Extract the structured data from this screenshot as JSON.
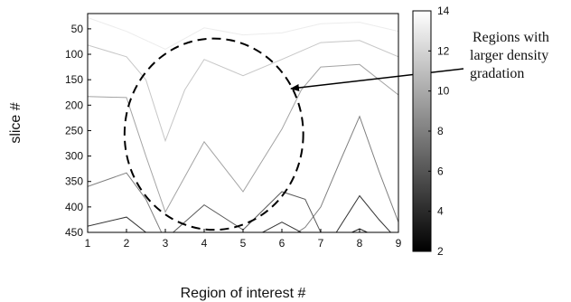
{
  "chart_data": {
    "type": "line",
    "title": "",
    "xlabel": "Region of interest #",
    "ylabel": "slice #",
    "xlim": [
      1,
      9
    ],
    "ylim": [
      450,
      20
    ],
    "y_inverted": true,
    "x_ticks": [
      1,
      2,
      3,
      4,
      5,
      6,
      7,
      8,
      9
    ],
    "y_ticks": [
      50,
      100,
      150,
      200,
      250,
      300,
      350,
      400,
      450
    ],
    "grid": false,
    "colorbar": {
      "ticks": [
        2,
        4,
        6,
        8,
        10,
        12,
        14
      ],
      "range": [
        2,
        14
      ],
      "colormap": "gray",
      "placement": "right"
    },
    "series": [
      {
        "level": 14,
        "color": "#ececec",
        "points": [
          [
            1,
            28
          ],
          [
            2,
            55
          ],
          [
            3,
            90
          ],
          [
            4,
            48
          ],
          [
            5,
            62
          ],
          [
            6,
            58
          ],
          [
            7,
            40
          ],
          [
            8,
            37
          ],
          [
            9,
            55
          ]
        ]
      },
      {
        "level": 12,
        "color": "#c6c6c6",
        "points": [
          [
            1,
            82
          ],
          [
            2,
            105
          ],
          [
            2.5,
            150
          ],
          [
            3,
            270
          ],
          [
            3.5,
            170
          ],
          [
            4,
            110
          ],
          [
            5,
            142
          ],
          [
            6,
            110
          ],
          [
            7,
            77
          ],
          [
            8,
            73
          ],
          [
            9,
            105
          ]
        ]
      },
      {
        "level": 10,
        "color": "#a3a3a3",
        "points": [
          [
            1,
            183
          ],
          [
            2,
            185
          ],
          [
            2.5,
            300
          ],
          [
            3,
            410
          ],
          [
            4,
            272
          ],
          [
            5,
            370
          ],
          [
            6,
            247
          ],
          [
            6.5,
            170
          ],
          [
            7,
            125
          ],
          [
            8,
            120
          ],
          [
            9,
            180
          ]
        ]
      },
      {
        "level": 8,
        "color": "#7e7e7e",
        "points": [
          [
            1,
            360
          ],
          [
            2,
            333
          ],
          [
            2.5,
            385
          ],
          [
            2.9,
            450
          ]
        ]
      },
      {
        "level": 8,
        "color": "#7e7e7e",
        "points": [
          [
            6.4,
            450
          ],
          [
            6.6,
            440
          ],
          [
            7,
            400
          ],
          [
            7.5,
            310
          ],
          [
            8,
            222
          ],
          [
            8.5,
            330
          ],
          [
            9,
            430
          ]
        ]
      },
      {
        "level": 6,
        "color": "#595959",
        "points": [
          [
            3.2,
            450
          ],
          [
            4,
            396
          ],
          [
            5,
            445
          ],
          [
            6,
            370
          ],
          [
            6.6,
            385
          ],
          [
            7,
            450
          ]
        ]
      },
      {
        "level": 4,
        "color": "#333333",
        "points": [
          [
            1,
            438
          ],
          [
            2,
            420
          ],
          [
            2.5,
            450
          ]
        ]
      },
      {
        "level": 4,
        "color": "#333333",
        "points": [
          [
            7.4,
            450
          ],
          [
            8,
            378
          ],
          [
            8.5,
            425
          ],
          [
            8.8,
            450
          ]
        ]
      },
      {
        "level": 4,
        "color": "#333333",
        "points": [
          [
            5.5,
            450
          ],
          [
            6,
            430
          ],
          [
            6.5,
            450
          ]
        ]
      },
      {
        "level": 3,
        "color": "#1a1a1a",
        "points": [
          [
            7.8,
            450
          ],
          [
            8,
            443
          ],
          [
            8.2,
            450
          ]
        ]
      }
    ],
    "annotations": [
      {
        "shape": "dashed-circle",
        "center": [
          4.25,
          257
        ],
        "rx_data": 2.3,
        "ry_data": 188
      },
      {
        "shape": "arrow",
        "from": [
          7.75,
          120
        ],
        "to": [
          6.4,
          150
        ]
      }
    ]
  },
  "annotation": {
    "text_lines": [
      "Regions with",
      "larger density",
      "gradation"
    ]
  }
}
